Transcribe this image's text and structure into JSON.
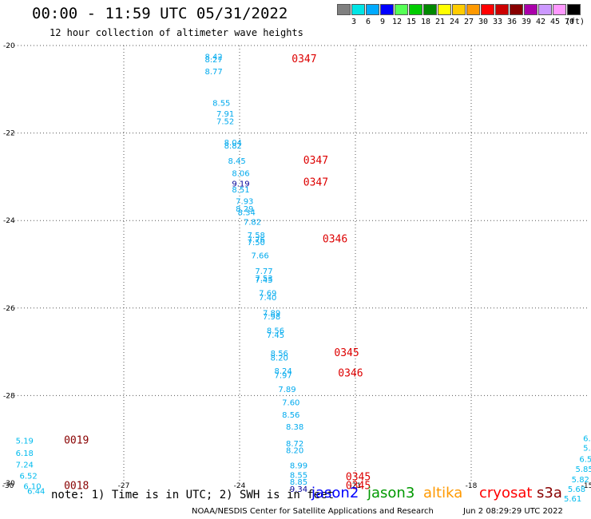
{
  "header": {
    "title": "00:00 - 11:59 UTC 05/31/2022",
    "subtitle": "12 hour collection of altimeter wave heights"
  },
  "color_scale": {
    "unit": "(ft)",
    "bins": [
      {
        "label": "3",
        "color": "#808080"
      },
      {
        "label": "6",
        "color": "#00e5e5"
      },
      {
        "label": "9",
        "color": "#00aaff"
      },
      {
        "label": "12",
        "color": "#0000ff"
      },
      {
        "label": "15",
        "color": "#55ff55"
      },
      {
        "label": "18",
        "color": "#00cc00"
      },
      {
        "label": "21",
        "color": "#008800"
      },
      {
        "label": "24",
        "color": "#ffff00"
      },
      {
        "label": "27",
        "color": "#ffcc00"
      },
      {
        "label": "30",
        "color": "#ff9900"
      },
      {
        "label": "33",
        "color": "#ff0000"
      },
      {
        "label": "36",
        "color": "#cc0000"
      },
      {
        "label": "39",
        "color": "#880000"
      },
      {
        "label": "42",
        "color": "#aa00aa"
      },
      {
        "label": "45",
        "color": "#cc99ff"
      },
      {
        "label": "70",
        "color": "#ff99ff"
      },
      {
        "label": "",
        "color": "#000000"
      }
    ]
  },
  "chart_data": {
    "type": "scatter",
    "xlim": [
      -30,
      -15
    ],
    "ylim": [
      -30,
      -20
    ],
    "x_ticks": [
      "-30",
      "-27",
      "-24",
      "-21",
      "-18",
      "-15"
    ],
    "y_ticks": [
      "-20",
      "-22",
      "-24",
      "-26",
      "-28",
      "-30"
    ],
    "grid": true,
    "point_labels": [
      {
        "x": -24.9,
        "y": -20.32,
        "text": "8.42",
        "color": "#00aaee"
      },
      {
        "x": -24.9,
        "y": -20.38,
        "text": "8.27",
        "color": "#00aaee"
      },
      {
        "x": -24.9,
        "y": -20.66,
        "text": "8.77",
        "color": "#00aaee"
      },
      {
        "x": -24.7,
        "y": -21.38,
        "text": "8.55",
        "color": "#00aaee"
      },
      {
        "x": -24.6,
        "y": -21.62,
        "text": "7.91",
        "color": "#00aaee"
      },
      {
        "x": -24.6,
        "y": -21.8,
        "text": "7.52",
        "color": "#00aaee"
      },
      {
        "x": -24.4,
        "y": -22.28,
        "text": "8.04",
        "color": "#00aaee"
      },
      {
        "x": -24.4,
        "y": -22.35,
        "text": "8.82",
        "color": "#00aaee"
      },
      {
        "x": -24.3,
        "y": -22.7,
        "text": "8.45",
        "color": "#00aaee"
      },
      {
        "x": -24.2,
        "y": -22.98,
        "text": "8.06",
        "color": "#00aaee"
      },
      {
        "x": -24.2,
        "y": -23.22,
        "text": "9.19",
        "color": "#000099"
      },
      {
        "x": -24.2,
        "y": -23.36,
        "text": "8.51",
        "color": "#00aaee"
      },
      {
        "x": -24.1,
        "y": -23.62,
        "text": "7.93",
        "color": "#00aaee"
      },
      {
        "x": -24.1,
        "y": -23.8,
        "text": "8.29",
        "color": "#00aaee"
      },
      {
        "x": -24.05,
        "y": -23.88,
        "text": "8.34",
        "color": "#00aaee"
      },
      {
        "x": -23.9,
        "y": -24.1,
        "text": "7.82",
        "color": "#00aaee"
      },
      {
        "x": -23.8,
        "y": -24.4,
        "text": "7.58",
        "color": "#00aaee"
      },
      {
        "x": -23.8,
        "y": -24.5,
        "text": "7.76",
        "color": "#00aaee"
      },
      {
        "x": -23.8,
        "y": -24.56,
        "text": "7.50",
        "color": "#00aaee"
      },
      {
        "x": -23.7,
        "y": -24.86,
        "text": "7.66",
        "color": "#00aaee"
      },
      {
        "x": -23.6,
        "y": -25.22,
        "text": "7.77",
        "color": "#00aaee"
      },
      {
        "x": -23.6,
        "y": -25.38,
        "text": "7.53",
        "color": "#00aaee"
      },
      {
        "x": -23.6,
        "y": -25.42,
        "text": "7.45",
        "color": "#00aaee"
      },
      {
        "x": -23.5,
        "y": -25.72,
        "text": "7.69",
        "color": "#00aaee"
      },
      {
        "x": -23.5,
        "y": -25.82,
        "text": "7.40",
        "color": "#00aaee"
      },
      {
        "x": -23.4,
        "y": -26.18,
        "text": "7.89",
        "color": "#00aaee"
      },
      {
        "x": -23.4,
        "y": -26.26,
        "text": "7.98",
        "color": "#00aaee"
      },
      {
        "x": -23.3,
        "y": -26.58,
        "text": "8.56",
        "color": "#00aaee"
      },
      {
        "x": -23.3,
        "y": -26.68,
        "text": "7.45",
        "color": "#00aaee"
      },
      {
        "x": -23.2,
        "y": -27.1,
        "text": "8.56",
        "color": "#00aaee"
      },
      {
        "x": -23.2,
        "y": -27.2,
        "text": "8.20",
        "color": "#00aaee"
      },
      {
        "x": -23.1,
        "y": -27.5,
        "text": "8.24",
        "color": "#00aaee"
      },
      {
        "x": -23.1,
        "y": -27.6,
        "text": "7.97",
        "color": "#00aaee"
      },
      {
        "x": -23.0,
        "y": -27.92,
        "text": "7.89",
        "color": "#00aaee"
      },
      {
        "x": -22.9,
        "y": -28.22,
        "text": "7.60",
        "color": "#00aaee"
      },
      {
        "x": -22.9,
        "y": -28.5,
        "text": "8.56",
        "color": "#00aaee"
      },
      {
        "x": -22.8,
        "y": -28.78,
        "text": "8.38",
        "color": "#00aaee"
      },
      {
        "x": -22.8,
        "y": -29.16,
        "text": "8.72",
        "color": "#00aaee"
      },
      {
        "x": -22.8,
        "y": -29.32,
        "text": "8.20",
        "color": "#00aaee"
      },
      {
        "x": -22.7,
        "y": -29.66,
        "text": "8.99",
        "color": "#00aaee"
      },
      {
        "x": -22.7,
        "y": -29.88,
        "text": "8.55",
        "color": "#00aaee"
      },
      {
        "x": -22.7,
        "y": -30.04,
        "text": "8.85",
        "color": "#00aaee"
      },
      {
        "x": -22.7,
        "y": -30.2,
        "text": "9.34",
        "color": "#000099"
      },
      {
        "x": -29.8,
        "y": -29.1,
        "text": "5.19",
        "color": "#00bbee"
      },
      {
        "x": -29.8,
        "y": -29.38,
        "text": "6.18",
        "color": "#00bbee"
      },
      {
        "x": -29.8,
        "y": -29.64,
        "text": "7.24",
        "color": "#00bbee"
      },
      {
        "x": -29.7,
        "y": -29.9,
        "text": "6.52",
        "color": "#00bbee"
      },
      {
        "x": -29.6,
        "y": -30.14,
        "text": "6.10",
        "color": "#00bbee"
      },
      {
        "x": -29.5,
        "y": -30.25,
        "text": "6.44",
        "color": "#00bbee"
      },
      {
        "x": -15.1,
        "y": -29.04,
        "text": "6.",
        "color": "#00bbee"
      },
      {
        "x": -15.1,
        "y": -29.26,
        "text": "5.",
        "color": "#00bbee"
      },
      {
        "x": -15.2,
        "y": -29.52,
        "text": "6.5",
        "color": "#00bbee"
      },
      {
        "x": -15.3,
        "y": -29.74,
        "text": "5.85",
        "color": "#00bbee"
      },
      {
        "x": -15.4,
        "y": -29.98,
        "text": "5.82",
        "color": "#00bbee"
      },
      {
        "x": -15.5,
        "y": -30.2,
        "text": "5.68",
        "color": "#00bbee"
      },
      {
        "x": -15.6,
        "y": -30.42,
        "text": "5.61",
        "color": "#00bbee"
      }
    ],
    "time_labels": [
      {
        "x": -22.65,
        "y": -20.38,
        "text": "0347",
        "color": "#dd0000"
      },
      {
        "x": -22.35,
        "y": -22.7,
        "text": "0347",
        "color": "#dd0000"
      },
      {
        "x": -22.35,
        "y": -23.2,
        "text": "0347",
        "color": "#dd0000"
      },
      {
        "x": -21.85,
        "y": -24.5,
        "text": "0346",
        "color": "#dd0000"
      },
      {
        "x": -21.55,
        "y": -27.1,
        "text": "0345",
        "color": "#dd0000"
      },
      {
        "x": -21.45,
        "y": -27.56,
        "text": "0346",
        "color": "#dd0000"
      },
      {
        "x": -21.25,
        "y": -29.94,
        "text": "0345",
        "color": "#dd0000"
      },
      {
        "x": -21.25,
        "y": -30.14,
        "text": "0345",
        "color": "#dd0000"
      },
      {
        "x": -28.55,
        "y": -29.1,
        "text": "0019",
        "color": "#880000"
      },
      {
        "x": -28.55,
        "y": -30.14,
        "text": "0018",
        "color": "#880000"
      }
    ]
  },
  "legend": {
    "note": "note: 1) Time is in UTC; 2) SWH is in feet",
    "satellites": [
      {
        "name": "jason2",
        "color": "#0000ff"
      },
      {
        "name": "jason3",
        "color": "#009900"
      },
      {
        "name": "altika",
        "color": "#ff9900"
      },
      {
        "name": "cryosat",
        "color": "#ff0000"
      },
      {
        "name": "s3a",
        "color": "#880000"
      }
    ]
  },
  "footer": {
    "credit": "NOAA/NESDIS Center for Satellite Applications and Research",
    "generated": "Jun  2 08:29:29 UTC 2022"
  }
}
